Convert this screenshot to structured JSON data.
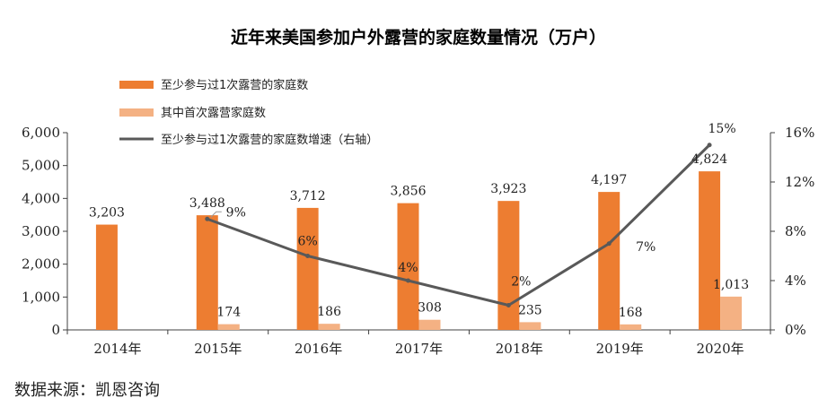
{
  "chart_data": {
    "type": "bar",
    "title": "近年来美国参加户外露营的家庭数量情况（万户）",
    "categories": [
      "2014年",
      "2015年",
      "2016年",
      "2017年",
      "2018年",
      "2019年",
      "2020年"
    ],
    "series": [
      {
        "name": "至少参与过1次露营的家庭数",
        "kind": "bar",
        "axis": "left",
        "color": "#ED7D31",
        "values": [
          3203,
          3488,
          3712,
          3856,
          3923,
          4197,
          4824
        ],
        "labels": [
          "3,203",
          "3,488",
          "3,712",
          "3,856",
          "3,923",
          "4,197",
          "4,824"
        ]
      },
      {
        "name": "其中首次露营家庭数",
        "kind": "bar",
        "axis": "left",
        "color": "#F4B183",
        "values": [
          null,
          174,
          186,
          308,
          235,
          168,
          1013
        ],
        "labels": [
          "",
          "174",
          "186",
          "308",
          "235",
          "168",
          "1,013"
        ]
      },
      {
        "name": "至少参与过1次露营的家庭数增速（右轴）",
        "kind": "line",
        "axis": "right",
        "color": "#595959",
        "values": [
          null,
          9,
          6,
          4,
          2,
          7,
          15
        ],
        "labels": [
          "",
          "9%",
          "6%",
          "4%",
          "2%",
          "7%",
          "15%"
        ]
      }
    ],
    "ylim": [
      0,
      6000
    ],
    "yticks": [
      "0",
      "1,000",
      "2,000",
      "3,000",
      "4,000",
      "5,000",
      "6,000"
    ],
    "y2lim": [
      0,
      16
    ],
    "y2ticks": [
      "0%",
      "4%",
      "8%",
      "12%",
      "16%"
    ],
    "legend_position": "top-left",
    "source": "数据来源：凯恩咨询"
  }
}
